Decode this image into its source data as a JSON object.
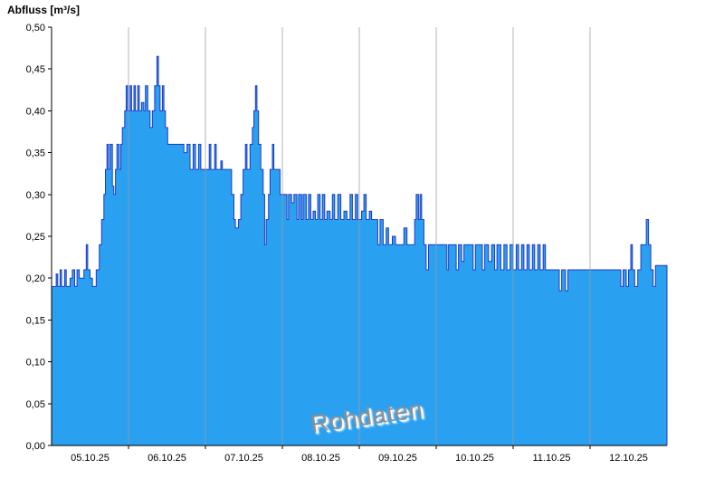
{
  "chart_data": {
    "type": "area",
    "title": "Abfluss [m³/s]",
    "watermark": "Rohdaten",
    "ylim": [
      0,
      0.5
    ],
    "ytick_labels": [
      "0,00",
      "0,05",
      "0,10",
      "0,15",
      "0,20",
      "0,25",
      "0,30",
      "0,35",
      "0,40",
      "0,45",
      "0,50"
    ],
    "x_range": [
      5,
      13
    ],
    "x_tick_days": [
      6,
      7,
      8,
      9,
      10,
      11,
      12
    ],
    "x_labels": [
      "05.10.25",
      "06.10.25",
      "07.10.25",
      "08.10.25",
      "09.10.25",
      "10.10.25",
      "11.10.25",
      "12.10.25"
    ],
    "legend": "none",
    "grid": "vertical-day-boundaries",
    "colors": {
      "fill": "#2aa1f0",
      "stroke": "#2038c8",
      "grid": "#9c9c9c",
      "axis": "#000000",
      "watermark": "#8f8f8f"
    },
    "series": [
      {
        "name": "Abfluss",
        "interpolation": "step",
        "points": [
          [
            5.0,
            0.19
          ],
          [
            5.06,
            0.205
          ],
          [
            5.08,
            0.19
          ],
          [
            5.11,
            0.21
          ],
          [
            5.13,
            0.19
          ],
          [
            5.17,
            0.21
          ],
          [
            5.19,
            0.19
          ],
          [
            5.24,
            0.2
          ],
          [
            5.27,
            0.21
          ],
          [
            5.3,
            0.19
          ],
          [
            5.33,
            0.21
          ],
          [
            5.36,
            0.2
          ],
          [
            5.42,
            0.21
          ],
          [
            5.45,
            0.24
          ],
          [
            5.47,
            0.21
          ],
          [
            5.5,
            0.2
          ],
          [
            5.53,
            0.19
          ],
          [
            5.58,
            0.21
          ],
          [
            5.62,
            0.24
          ],
          [
            5.65,
            0.27
          ],
          [
            5.68,
            0.3
          ],
          [
            5.7,
            0.33
          ],
          [
            5.72,
            0.36
          ],
          [
            5.74,
            0.33
          ],
          [
            5.76,
            0.36
          ],
          [
            5.79,
            0.31
          ],
          [
            5.81,
            0.3
          ],
          [
            5.83,
            0.33
          ],
          [
            5.85,
            0.36
          ],
          [
            5.88,
            0.33
          ],
          [
            5.9,
            0.36
          ],
          [
            5.92,
            0.38
          ],
          [
            5.95,
            0.4
          ],
          [
            5.97,
            0.43
          ],
          [
            5.99,
            0.4
          ],
          [
            6.02,
            0.43
          ],
          [
            6.04,
            0.4
          ],
          [
            6.07,
            0.43
          ],
          [
            6.09,
            0.4
          ],
          [
            6.12,
            0.43
          ],
          [
            6.14,
            0.4
          ],
          [
            6.17,
            0.41
          ],
          [
            6.2,
            0.4
          ],
          [
            6.22,
            0.43
          ],
          [
            6.25,
            0.4
          ],
          [
            6.28,
            0.38
          ],
          [
            6.31,
            0.4
          ],
          [
            6.34,
            0.43
          ],
          [
            6.37,
            0.465
          ],
          [
            6.39,
            0.43
          ],
          [
            6.41,
            0.4
          ],
          [
            6.44,
            0.43
          ],
          [
            6.46,
            0.4
          ],
          [
            6.48,
            0.38
          ],
          [
            6.51,
            0.36
          ],
          [
            6.68,
            0.36
          ],
          [
            6.72,
            0.35
          ],
          [
            6.76,
            0.36
          ],
          [
            6.8,
            0.33
          ],
          [
            6.84,
            0.36
          ],
          [
            6.87,
            0.33
          ],
          [
            6.91,
            0.36
          ],
          [
            6.94,
            0.33
          ],
          [
            7.0,
            0.33
          ],
          [
            7.05,
            0.36
          ],
          [
            7.07,
            0.33
          ],
          [
            7.12,
            0.36
          ],
          [
            7.14,
            0.33
          ],
          [
            7.2,
            0.34
          ],
          [
            7.22,
            0.33
          ],
          [
            7.31,
            0.33
          ],
          [
            7.34,
            0.3
          ],
          [
            7.37,
            0.27
          ],
          [
            7.39,
            0.26
          ],
          [
            7.43,
            0.27
          ],
          [
            7.46,
            0.3
          ],
          [
            7.49,
            0.33
          ],
          [
            7.52,
            0.36
          ],
          [
            7.54,
            0.33
          ],
          [
            7.58,
            0.36
          ],
          [
            7.61,
            0.38
          ],
          [
            7.63,
            0.4
          ],
          [
            7.65,
            0.43
          ],
          [
            7.67,
            0.4
          ],
          [
            7.69,
            0.36
          ],
          [
            7.72,
            0.33
          ],
          [
            7.75,
            0.3
          ],
          [
            7.77,
            0.24
          ],
          [
            7.79,
            0.27
          ],
          [
            7.82,
            0.3
          ],
          [
            7.84,
            0.33
          ],
          [
            7.87,
            0.36
          ],
          [
            7.89,
            0.33
          ],
          [
            7.94,
            0.33
          ],
          [
            7.97,
            0.3
          ],
          [
            8.02,
            0.3
          ],
          [
            8.06,
            0.27
          ],
          [
            8.08,
            0.3
          ],
          [
            8.12,
            0.29
          ],
          [
            8.15,
            0.3
          ],
          [
            8.19,
            0.27
          ],
          [
            8.21,
            0.3
          ],
          [
            8.25,
            0.27
          ],
          [
            8.27,
            0.3
          ],
          [
            8.31,
            0.27
          ],
          [
            8.34,
            0.3
          ],
          [
            8.37,
            0.27
          ],
          [
            8.4,
            0.28
          ],
          [
            8.43,
            0.27
          ],
          [
            8.46,
            0.3
          ],
          [
            8.49,
            0.27
          ],
          [
            8.52,
            0.3
          ],
          [
            8.55,
            0.27
          ],
          [
            8.58,
            0.28
          ],
          [
            8.62,
            0.27
          ],
          [
            8.65,
            0.3
          ],
          [
            8.68,
            0.27
          ],
          [
            8.72,
            0.3
          ],
          [
            8.76,
            0.27
          ],
          [
            8.8,
            0.28
          ],
          [
            8.84,
            0.27
          ],
          [
            8.88,
            0.3
          ],
          [
            8.91,
            0.27
          ],
          [
            8.95,
            0.3
          ],
          [
            8.98,
            0.27
          ],
          [
            9.03,
            0.28
          ],
          [
            9.06,
            0.3
          ],
          [
            9.09,
            0.27
          ],
          [
            9.13,
            0.28
          ],
          [
            9.16,
            0.27
          ],
          [
            9.2,
            0.27
          ],
          [
            9.24,
            0.24
          ],
          [
            9.27,
            0.27
          ],
          [
            9.31,
            0.24
          ],
          [
            9.35,
            0.26
          ],
          [
            9.38,
            0.24
          ],
          [
            9.43,
            0.25
          ],
          [
            9.47,
            0.24
          ],
          [
            9.52,
            0.24
          ],
          [
            9.58,
            0.26
          ],
          [
            9.62,
            0.24
          ],
          [
            9.68,
            0.24
          ],
          [
            9.72,
            0.27
          ],
          [
            9.74,
            0.3
          ],
          [
            9.77,
            0.27
          ],
          [
            9.79,
            0.3
          ],
          [
            9.81,
            0.27
          ],
          [
            9.84,
            0.24
          ],
          [
            9.87,
            0.21
          ],
          [
            9.9,
            0.24
          ],
          [
            10.0,
            0.24
          ],
          [
            10.1,
            0.24
          ],
          [
            10.14,
            0.21
          ],
          [
            10.16,
            0.24
          ],
          [
            10.22,
            0.24
          ],
          [
            10.26,
            0.21
          ],
          [
            10.29,
            0.24
          ],
          [
            10.33,
            0.22
          ],
          [
            10.36,
            0.24
          ],
          [
            10.44,
            0.24
          ],
          [
            10.48,
            0.21
          ],
          [
            10.51,
            0.24
          ],
          [
            10.57,
            0.24
          ],
          [
            10.6,
            0.21
          ],
          [
            10.63,
            0.24
          ],
          [
            10.68,
            0.22
          ],
          [
            10.72,
            0.24
          ],
          [
            10.76,
            0.21
          ],
          [
            10.79,
            0.24
          ],
          [
            10.84,
            0.21
          ],
          [
            10.88,
            0.24
          ],
          [
            10.92,
            0.21
          ],
          [
            10.96,
            0.24
          ],
          [
            11.0,
            0.21
          ],
          [
            11.04,
            0.24
          ],
          [
            11.07,
            0.21
          ],
          [
            11.11,
            0.24
          ],
          [
            11.14,
            0.21
          ],
          [
            11.18,
            0.24
          ],
          [
            11.21,
            0.21
          ],
          [
            11.25,
            0.24
          ],
          [
            11.28,
            0.21
          ],
          [
            11.32,
            0.24
          ],
          [
            11.35,
            0.21
          ],
          [
            11.39,
            0.24
          ],
          [
            11.42,
            0.21
          ],
          [
            11.5,
            0.21
          ],
          [
            11.6,
            0.185
          ],
          [
            11.63,
            0.21
          ],
          [
            11.68,
            0.185
          ],
          [
            11.71,
            0.21
          ],
          [
            12.0,
            0.21
          ],
          [
            12.3,
            0.21
          ],
          [
            12.36,
            0.21
          ],
          [
            12.4,
            0.19
          ],
          [
            12.43,
            0.21
          ],
          [
            12.47,
            0.19
          ],
          [
            12.5,
            0.21
          ],
          [
            12.53,
            0.24
          ],
          [
            12.55,
            0.21
          ],
          [
            12.58,
            0.19
          ],
          [
            12.62,
            0.21
          ],
          [
            12.66,
            0.24
          ],
          [
            12.7,
            0.24
          ],
          [
            12.73,
            0.27
          ],
          [
            12.76,
            0.24
          ],
          [
            12.79,
            0.21
          ],
          [
            12.82,
            0.19
          ],
          [
            12.85,
            0.215
          ],
          [
            13.0,
            0.215
          ]
        ]
      }
    ]
  }
}
